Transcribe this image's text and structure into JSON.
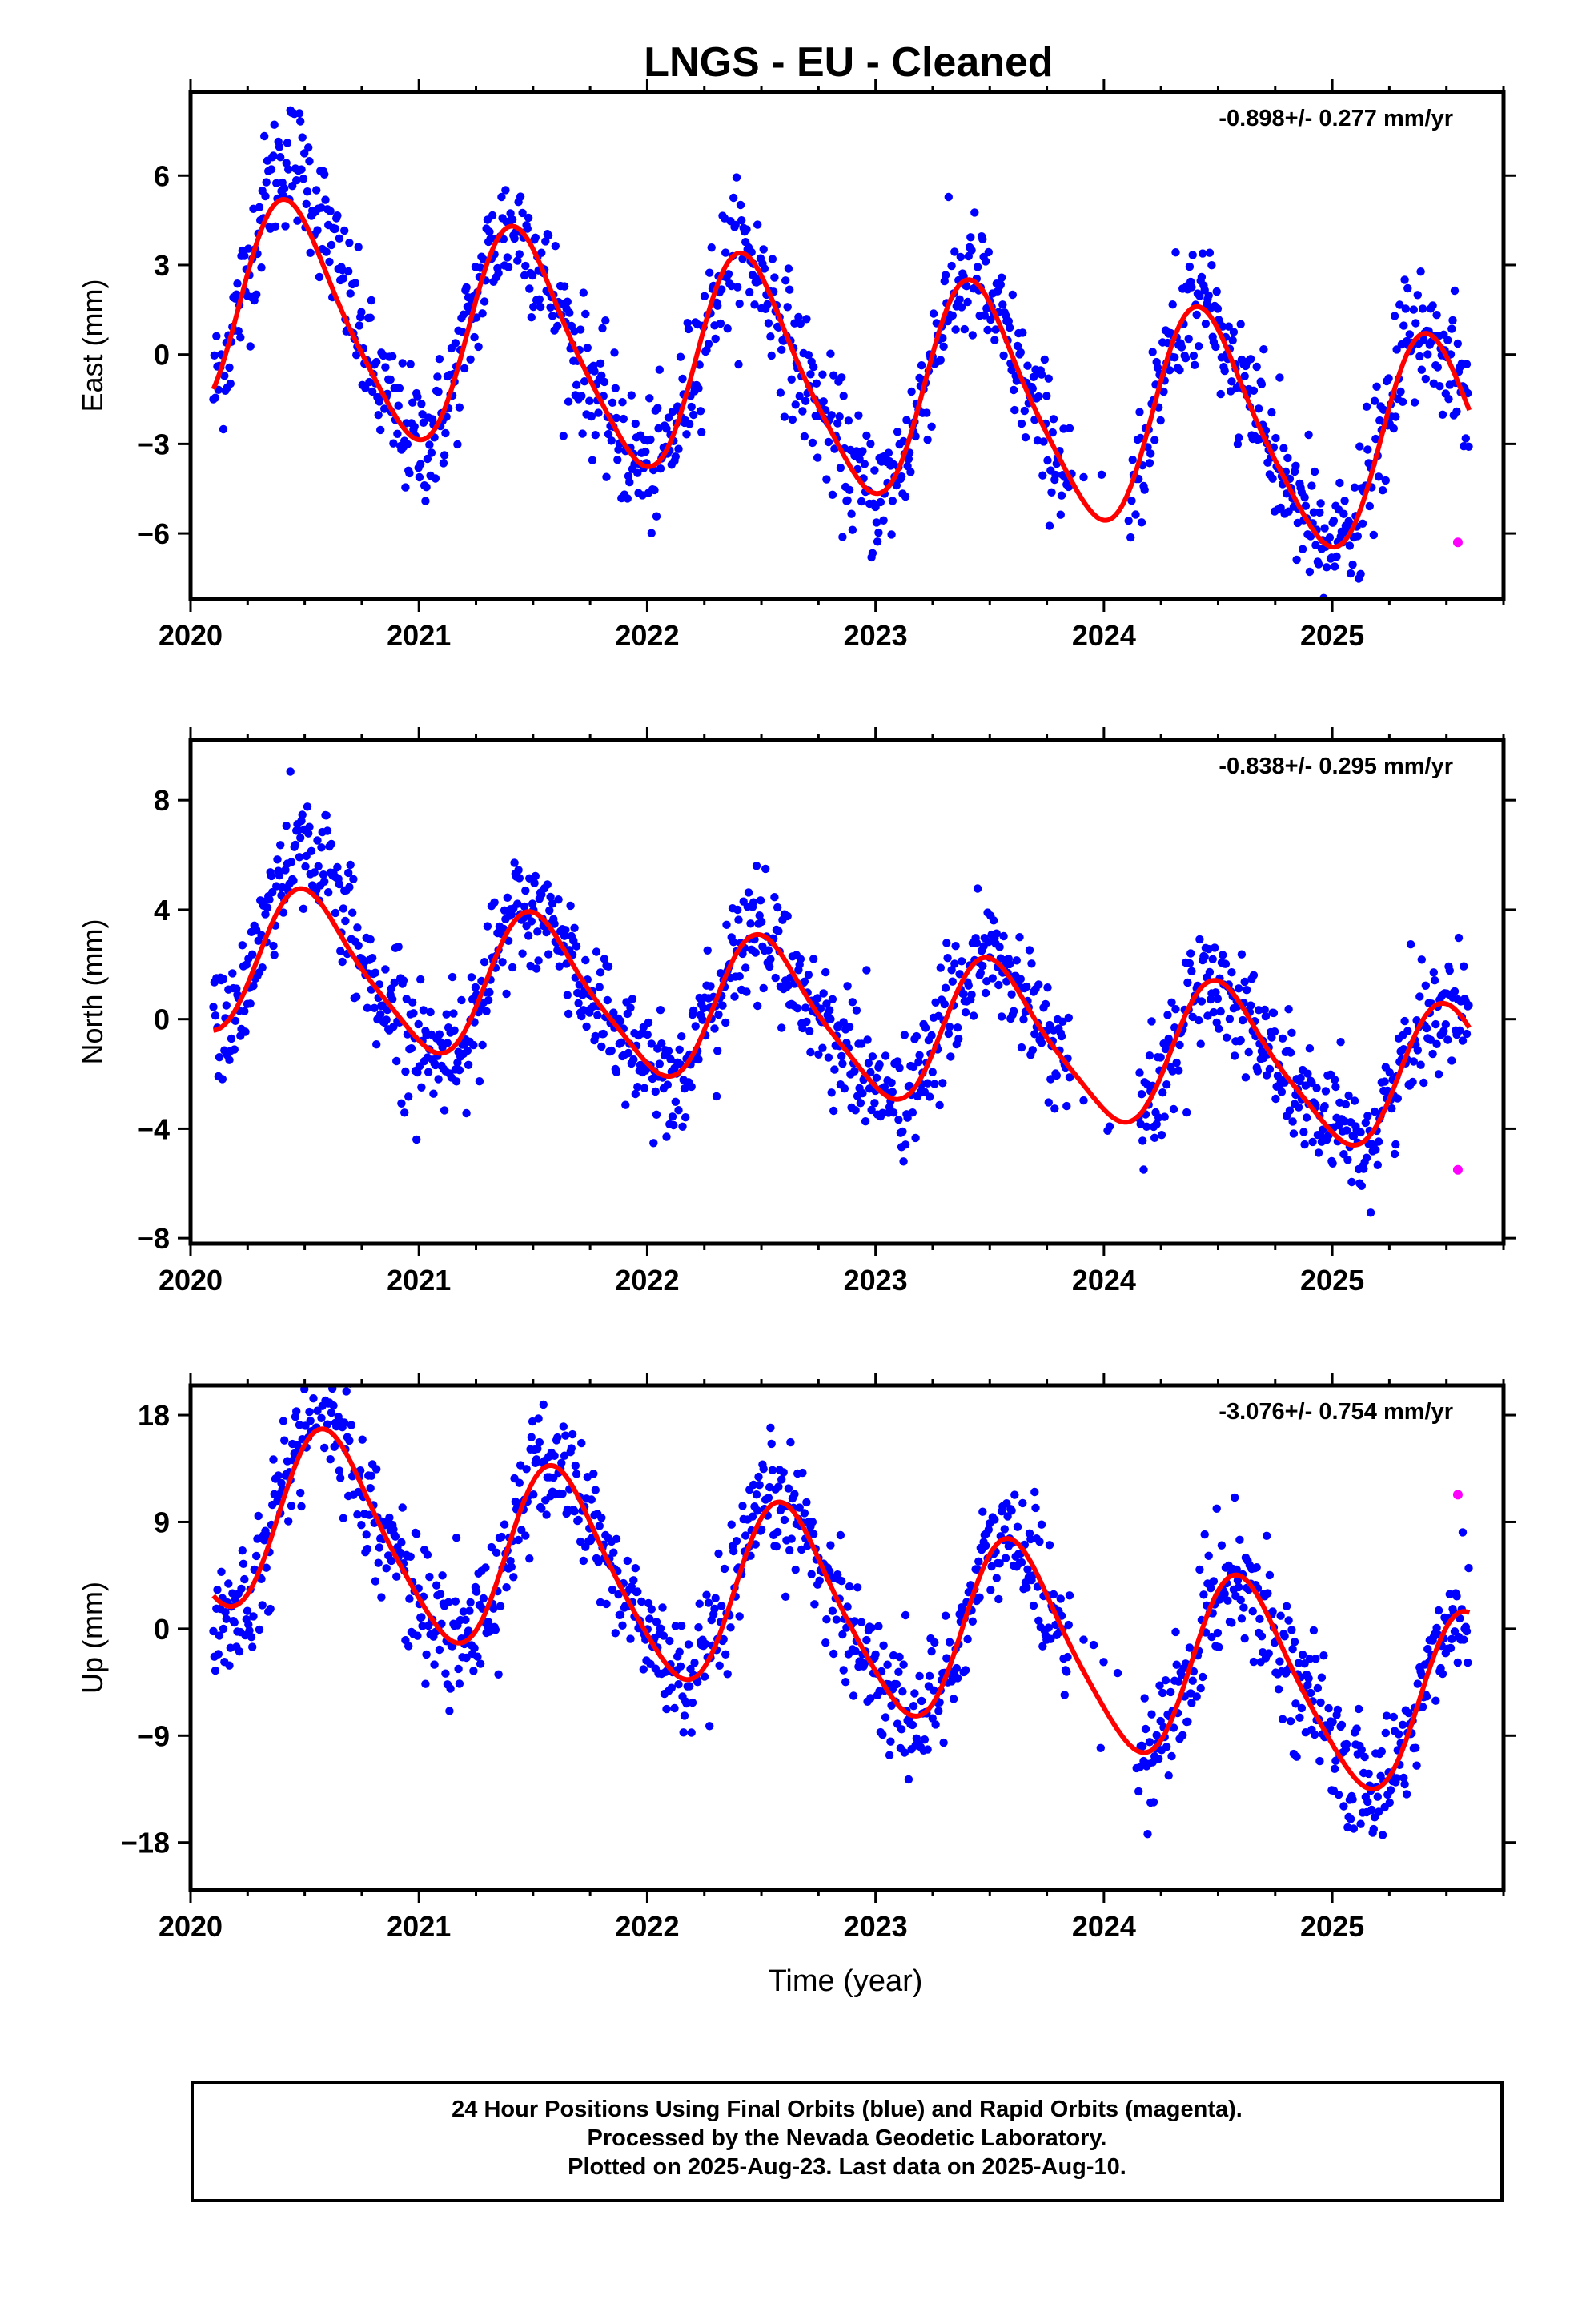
{
  "page": {
    "title": "LNGS  - EU - Cleaned"
  },
  "colors": {
    "final": "#0000ff",
    "rapid": "#ff00ff",
    "fit": "#ff0000",
    "axis": "#000000"
  },
  "footer": {
    "line1": "24 Hour Positions Using Final Orbits (blue) and Rapid Orbits (magenta).",
    "line2": "Processed by the Nevada Geodetic Laboratory.",
    "line3": "Plotted on 2025-Aug-23. Last data on 2025-Aug-10."
  },
  "chart_data": [
    {
      "type": "scatter",
      "ylabel": "East (mm)",
      "rate_label": "-0.898+/- 0.277 mm/yr",
      "xlim": [
        2020.0,
        2025.75
      ],
      "ylim": [
        -8.2,
        8.8
      ],
      "x_ticks": [
        2020,
        2021,
        2022,
        2023,
        2024,
        2025
      ],
      "y_ticks": [
        -6,
        -3,
        0,
        3,
        6
      ],
      "fit": {
        "offset": -0.6,
        "rate": -0.898,
        "amp": 3.6,
        "peak_phase": 0.45,
        "amp2": 0.6,
        "ref_year": 2022.5
      },
      "gaps": [
        [
          2023.85,
          2024.12
        ]
      ],
      "scatter_sd": 1.1,
      "start": 2020.1,
      "end": 2025.6,
      "rapid": {
        "x": 2025.55,
        "y": -6.3
      }
    },
    {
      "type": "scatter",
      "ylabel": "North (mm)",
      "rate_label": "-0.838+/- 0.295 mm/yr",
      "xlim": [
        2020.0,
        2025.75
      ],
      "ylim": [
        -8.2,
        10.2
      ],
      "x_ticks": [
        2020,
        2021,
        2022,
        2023,
        2024,
        2025
      ],
      "y_ticks": [
        -8,
        -4,
        0,
        4,
        8
      ],
      "fit": {
        "offset": 0.2,
        "rate": -0.838,
        "amp": 2.6,
        "peak_phase": 0.53,
        "amp2": 0.5,
        "ref_year": 2022.5
      },
      "gaps": [
        [
          2023.85,
          2024.15
        ]
      ],
      "scatter_sd": 1.1,
      "start": 2020.1,
      "end": 2025.6,
      "rapid": {
        "x": 2025.55,
        "y": -5.5
      }
    },
    {
      "type": "scatter",
      "ylabel": "Up (mm)",
      "rate_label": "-3.076+/- 0.754 mm/yr",
      "xlim": [
        2020.0,
        2025.75
      ],
      "ylim": [
        -22,
        20.5
      ],
      "x_ticks": [
        2020,
        2021,
        2022,
        2023,
        2024,
        2025
      ],
      "y_ticks": [
        -18,
        -9,
        0,
        9,
        18
      ],
      "xlabel": "Time (year)",
      "fit": {
        "offset": 2.5,
        "rate": -3.076,
        "amp": 7.8,
        "peak_phase": 0.62,
        "amp2": 1.2,
        "ref_year": 2022.5
      },
      "gaps": [
        [
          2023.85,
          2024.15
        ]
      ],
      "scatter_sd": 2.6,
      "start": 2020.1,
      "end": 2025.6,
      "rapid": {
        "x": 2025.55,
        "y": 11.3
      }
    }
  ]
}
